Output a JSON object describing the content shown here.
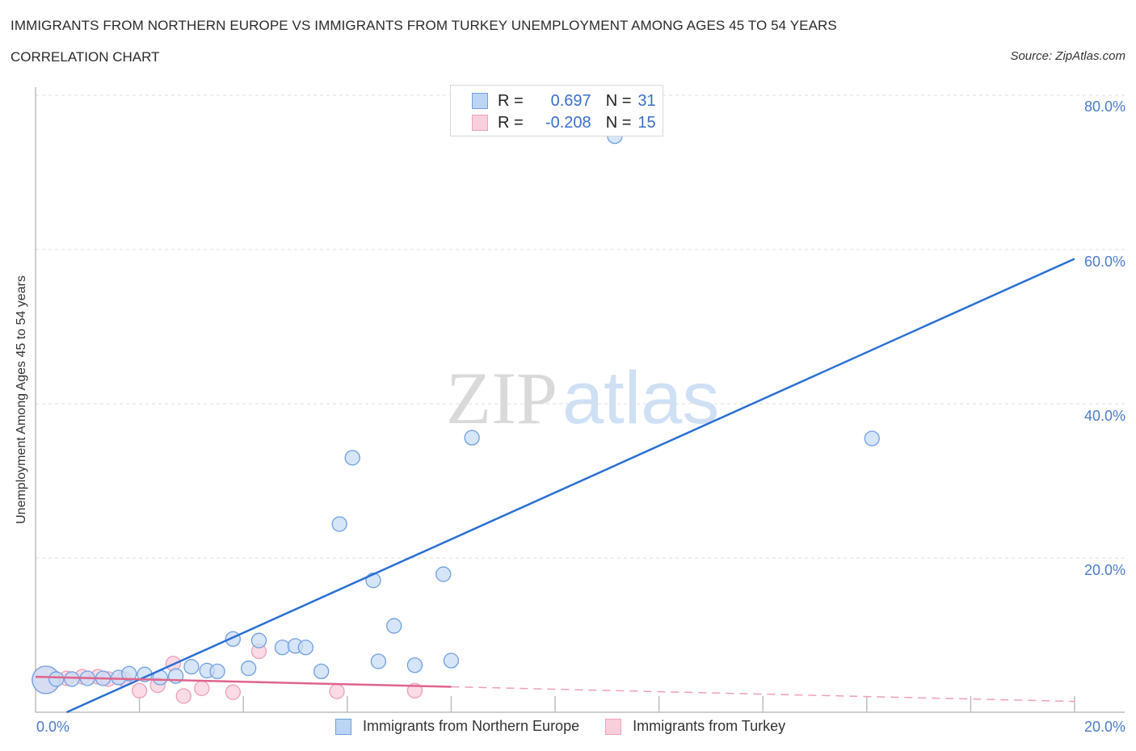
{
  "header": {
    "title": "IMMIGRANTS FROM NORTHERN EUROPE VS IMMIGRANTS FROM TURKEY UNEMPLOYMENT AMONG AGES 45 TO 54 YEARS",
    "subtitle": "CORRELATION CHART",
    "source": "Source: ZipAtlas.com"
  },
  "watermark": {
    "zip": "ZIP",
    "atlas": "atlas"
  },
  "legend": {
    "rows": [
      {
        "r_label": "R =",
        "r_value": "0.697",
        "n_label": "N =",
        "n_value": "31",
        "color": "#a8c8f0"
      },
      {
        "r_label": "R =",
        "r_value": "-0.208",
        "n_label": "N =",
        "n_value": "15",
        "color": "#f7b8cb"
      }
    ]
  },
  "bottom_legend": [
    {
      "label": "Immigrants from Northern Europe",
      "color": "#a8c8f0"
    },
    {
      "label": "Immigrants from Turkey",
      "color": "#f7b8cb"
    }
  ],
  "axes": {
    "ylabel": "Unemployment Among Ages 45 to 54 years",
    "y_ticks": [
      "80.0%",
      "60.0%",
      "40.0%",
      "20.0%"
    ],
    "x_ticks": [
      "0.0%",
      "20.0%"
    ]
  },
  "colors": {
    "blue": "#2a6fd4",
    "blue_fill": "#c9dcf5",
    "blue_stroke": "#6f9fe0",
    "pink": "#e0648c",
    "pink_fill": "#f9cfdc",
    "pink_stroke": "#eea0b8",
    "axis_text": "#4a7cd0"
  },
  "chart_data": {
    "type": "scatter",
    "title": "IMMIGRANTS FROM NORTHERN EUROPE VS IMMIGRANTS FROM TURKEY UNEMPLOYMENT AMONG AGES 45 TO 54 YEARS",
    "subtitle": "CORRELATION CHART",
    "xlabel": "",
    "ylabel": "Unemployment Among Ages 45 to 54 years",
    "xlim": [
      0,
      20
    ],
    "ylim": [
      0,
      80
    ],
    "x_unit": "%",
    "y_unit": "%",
    "grid": true,
    "legend_position": "bottom",
    "series": [
      {
        "name": "Immigrants from Northern Europe",
        "color": "#a8c8f0",
        "R": 0.697,
        "N": 31,
        "trendline": {
          "x": [
            0.6,
            20.0
          ],
          "y": [
            0.0,
            58.8
          ]
        },
        "points": [
          {
            "x": 0.2,
            "y": 4.2,
            "size": "large"
          },
          {
            "x": 0.4,
            "y": 4.3
          },
          {
            "x": 0.7,
            "y": 4.3
          },
          {
            "x": 1.0,
            "y": 4.4
          },
          {
            "x": 1.3,
            "y": 4.4
          },
          {
            "x": 1.6,
            "y": 4.5
          },
          {
            "x": 1.8,
            "y": 5.0
          },
          {
            "x": 2.1,
            "y": 4.9
          },
          {
            "x": 2.4,
            "y": 4.5
          },
          {
            "x": 2.7,
            "y": 4.7
          },
          {
            "x": 3.0,
            "y": 5.9
          },
          {
            "x": 3.3,
            "y": 5.4
          },
          {
            "x": 3.5,
            "y": 5.3
          },
          {
            "x": 3.8,
            "y": 9.5
          },
          {
            "x": 4.1,
            "y": 5.7
          },
          {
            "x": 4.3,
            "y": 9.3
          },
          {
            "x": 4.75,
            "y": 8.4
          },
          {
            "x": 5.0,
            "y": 8.6
          },
          {
            "x": 5.2,
            "y": 8.4
          },
          {
            "x": 5.5,
            "y": 5.3
          },
          {
            "x": 5.85,
            "y": 24.4
          },
          {
            "x": 6.1,
            "y": 33.0
          },
          {
            "x": 6.5,
            "y": 17.1
          },
          {
            "x": 6.6,
            "y": 6.6
          },
          {
            "x": 6.9,
            "y": 11.2
          },
          {
            "x": 7.3,
            "y": 6.1
          },
          {
            "x": 7.85,
            "y": 17.9
          },
          {
            "x": 8.0,
            "y": 6.7
          },
          {
            "x": 8.4,
            "y": 35.6
          },
          {
            "x": 11.15,
            "y": 74.7
          },
          {
            "x": 16.1,
            "y": 35.5
          }
        ]
      },
      {
        "name": "Immigrants from Turkey",
        "color": "#f7b8cb",
        "R": -0.208,
        "N": 15,
        "trendline": {
          "x": [
            0.0,
            8.0
          ],
          "y": [
            4.6,
            3.3
          ],
          "dashed_extension": {
            "x": [
              8.0,
              20.0
            ],
            "y": [
              3.3,
              1.4
            ]
          }
        },
        "points": [
          {
            "x": 0.2,
            "y": 4.2,
            "size": "large"
          },
          {
            "x": 0.6,
            "y": 4.4
          },
          {
            "x": 0.9,
            "y": 4.6
          },
          {
            "x": 1.2,
            "y": 4.6
          },
          {
            "x": 1.4,
            "y": 4.3
          },
          {
            "x": 1.7,
            "y": 4.3
          },
          {
            "x": 2.0,
            "y": 2.8
          },
          {
            "x": 2.35,
            "y": 3.5
          },
          {
            "x": 2.65,
            "y": 6.3
          },
          {
            "x": 2.85,
            "y": 2.1
          },
          {
            "x": 3.2,
            "y": 3.1
          },
          {
            "x": 3.8,
            "y": 2.6
          },
          {
            "x": 4.3,
            "y": 7.9
          },
          {
            "x": 5.8,
            "y": 2.7
          },
          {
            "x": 7.3,
            "y": 2.8
          }
        ]
      }
    ]
  }
}
